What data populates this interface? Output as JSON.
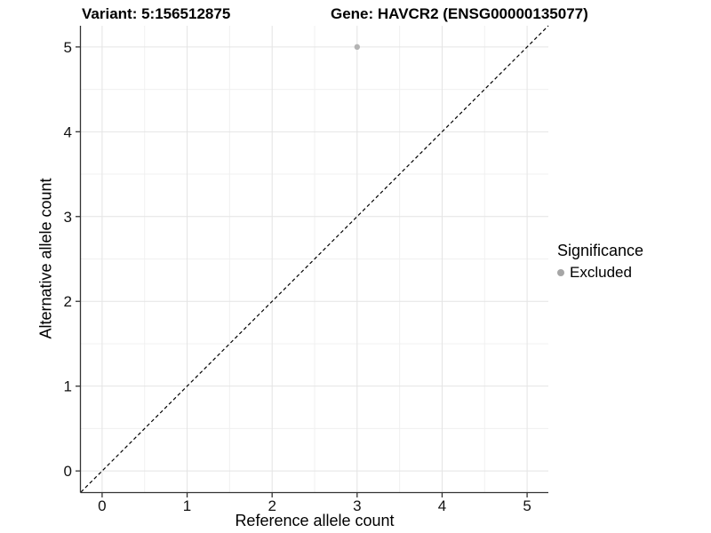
{
  "titles": {
    "left": "Variant: 5:156512875",
    "right": "Gene: HAVCR2 (ENSG00000135077)"
  },
  "axes": {
    "x_label": "Reference allele count",
    "y_label": "Alternative allele count"
  },
  "legend": {
    "title": "Significance",
    "items": [
      {
        "label": "Excluded",
        "color": "#a6a6a6"
      }
    ]
  },
  "chart_data": {
    "type": "scatter",
    "title": "Variant: 5:156512875   Gene: HAVCR2 (ENSG00000135077)",
    "xlabel": "Reference allele count",
    "ylabel": "Alternative allele count",
    "points": [
      {
        "x": 3,
        "y": 5,
        "series": "Excluded"
      }
    ],
    "series_colors": {
      "Excluded": "#b3b3b3"
    },
    "point_radius": 3.2,
    "xticks": [
      0,
      1,
      2,
      3,
      4,
      5
    ],
    "yticks": [
      0,
      1,
      2,
      3,
      4,
      5
    ],
    "minor_ticks": [
      0.5,
      1.5,
      2.5,
      3.5,
      4.5
    ],
    "xlim": [
      -0.25,
      5.25
    ],
    "ylim": [
      -0.25,
      5.25
    ],
    "grid": "major+minor",
    "legend_position": "right",
    "reference_line": {
      "kind": "identity y=x",
      "style": "dashed",
      "color": "#000000",
      "dash": "4 3"
    },
    "colors": {
      "panel_background": "#ffffff",
      "major_grid": "#e4e4e4",
      "minor_grid": "#f0f0f0",
      "axis_line": "#333333",
      "tick_mark": "#333333",
      "tick_label": "#111111"
    },
    "tick_label_size": 17
  }
}
